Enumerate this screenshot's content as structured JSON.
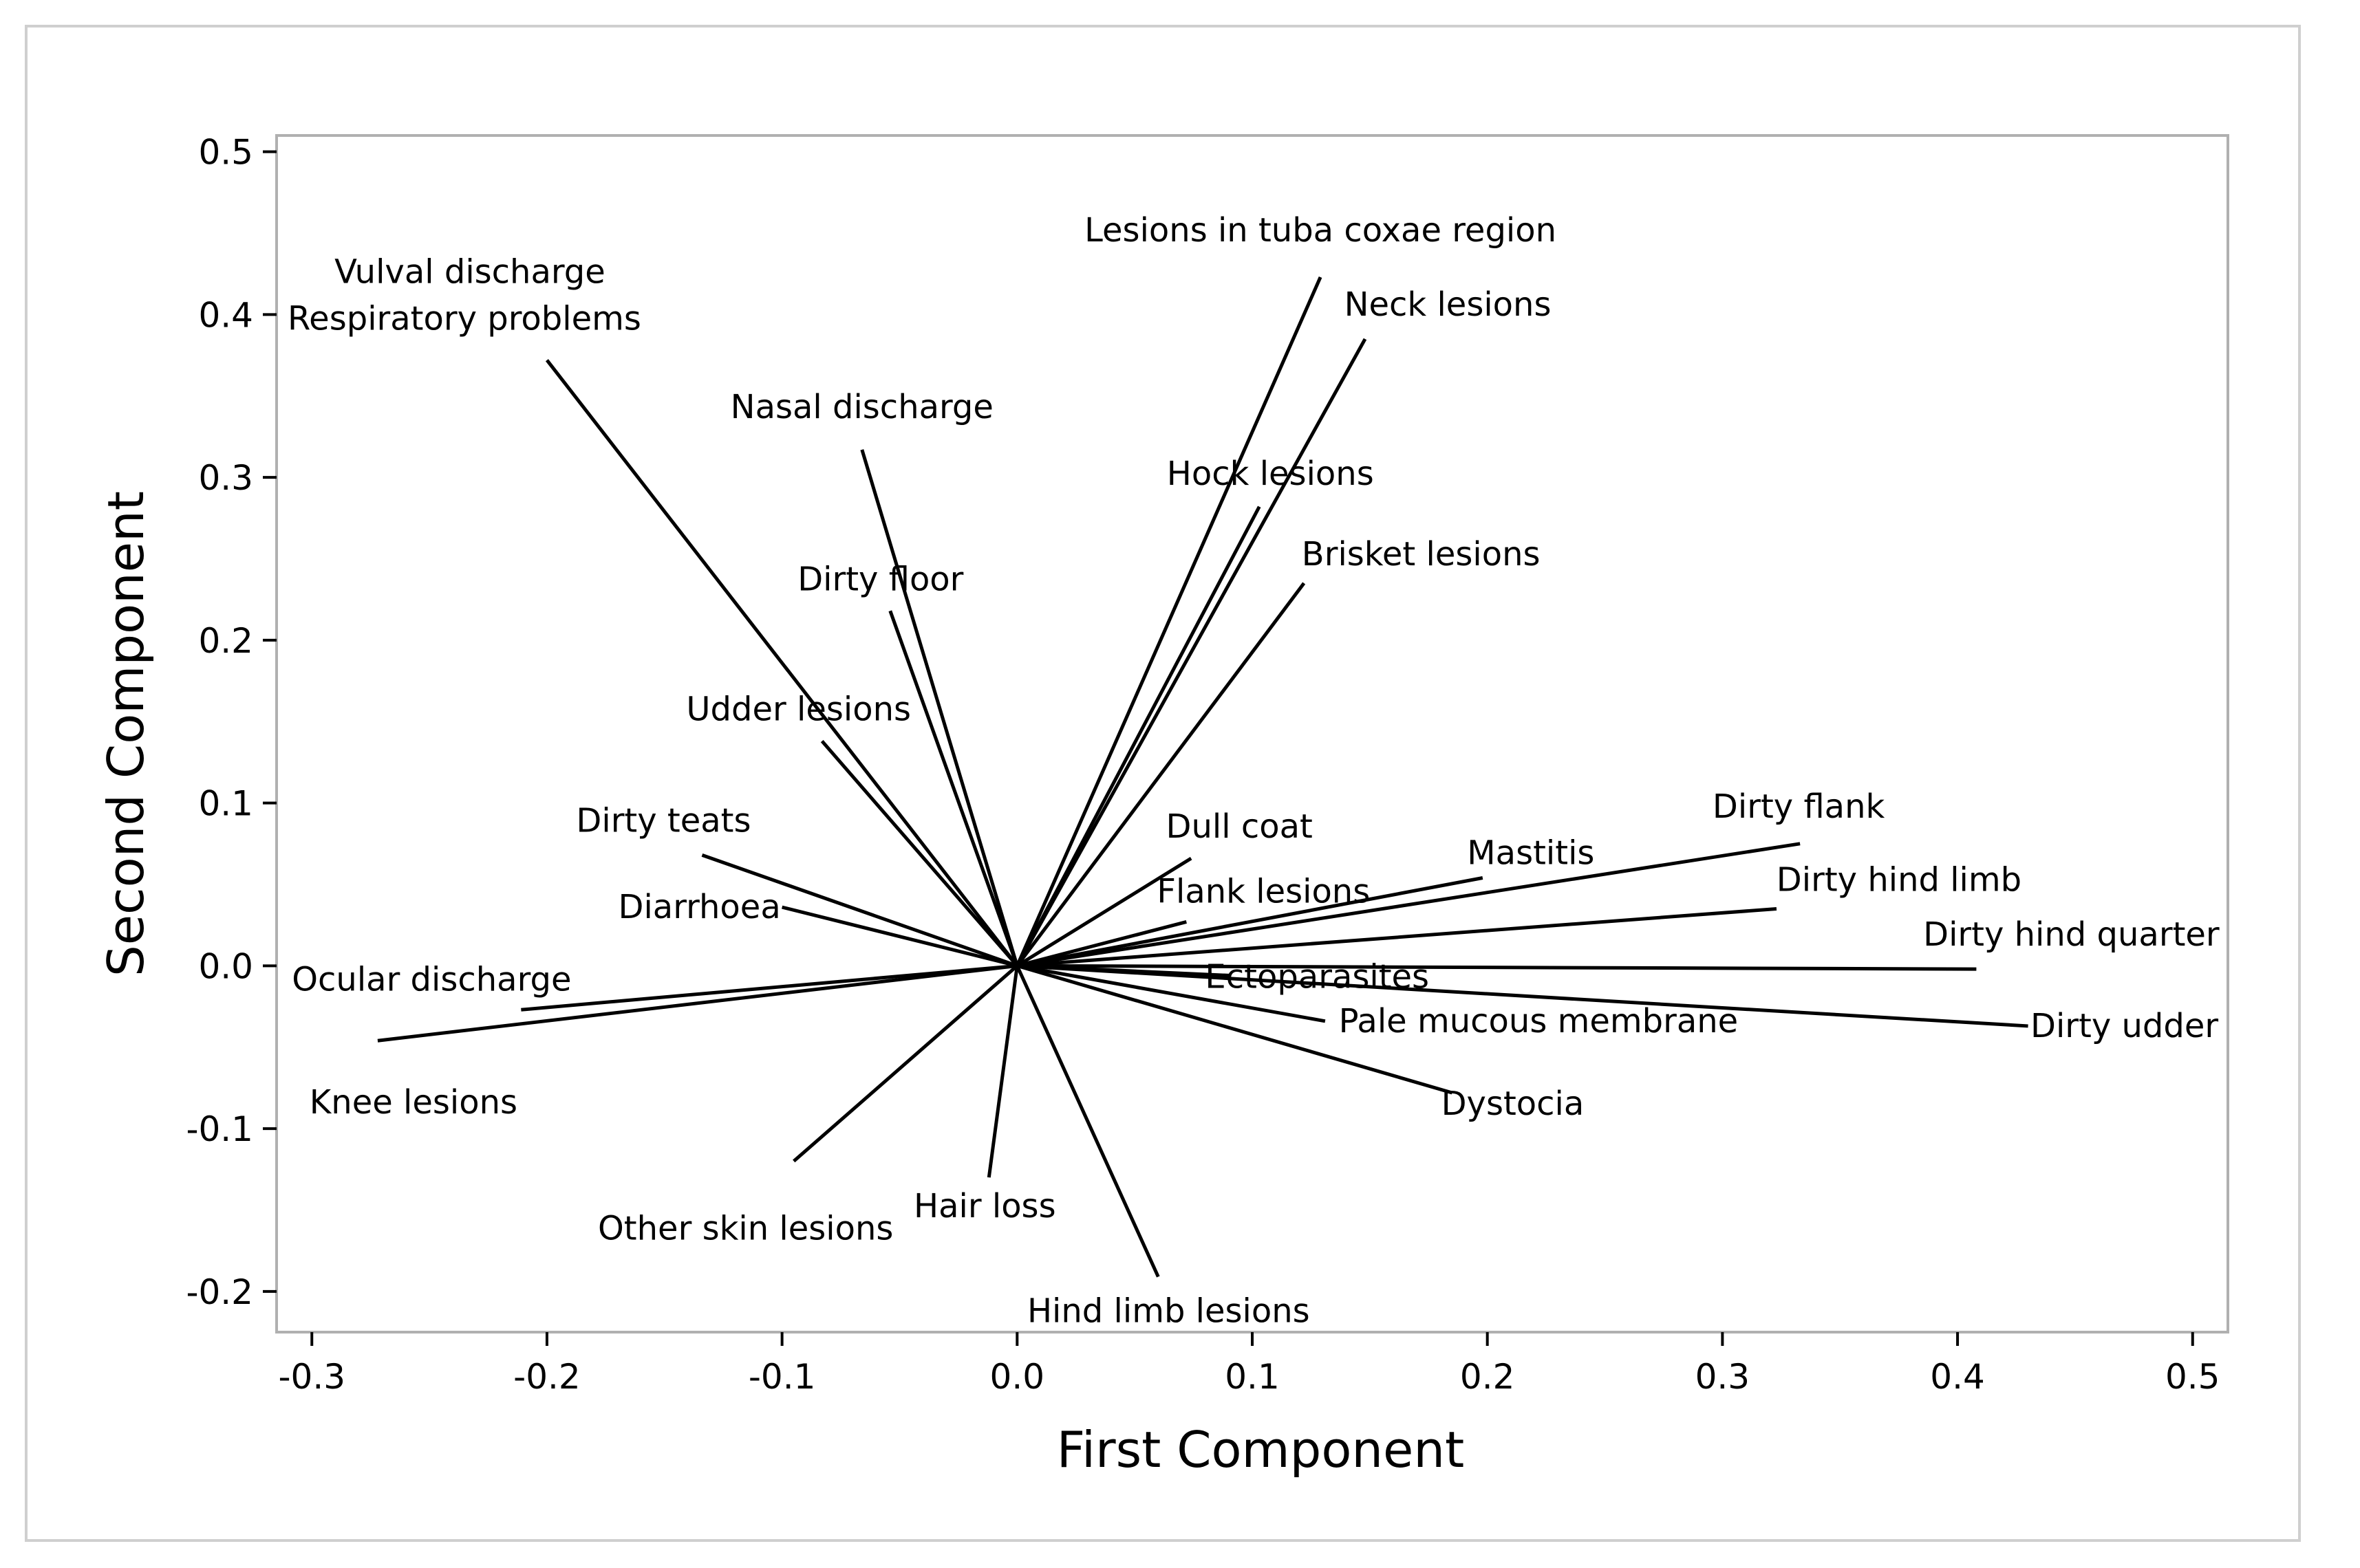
{
  "chart_data": {
    "type": "loading-plot",
    "title": "",
    "xlabel": "First Component",
    "ylabel": "Second Component",
    "xlim": [
      -0.315,
      0.515
    ],
    "ylim": [
      -0.225,
      0.51
    ],
    "x_ticks": [
      "-0.3",
      "-0.2",
      "-0.1",
      "0.0",
      "0.1",
      "0.2",
      "0.3",
      "0.4",
      "0.5"
    ],
    "x_tick_values": [
      -0.3,
      -0.2,
      -0.1,
      0.0,
      0.1,
      0.2,
      0.3,
      0.4,
      0.5
    ],
    "y_ticks": [
      "-0.2",
      "-0.1",
      "0.0",
      "0.1",
      "0.2",
      "0.3",
      "0.4",
      "0.5"
    ],
    "y_tick_values": [
      -0.2,
      -0.1,
      0.0,
      0.1,
      0.2,
      0.3,
      0.4,
      0.5
    ],
    "grid": false,
    "legend": "none",
    "vectors": [
      {
        "label": "Lesions in tuba coxae region",
        "x": 0.129,
        "y": 0.423
      },
      {
        "label": "Neck lesions",
        "x": 0.148,
        "y": 0.385
      },
      {
        "label": "Vulval discharge",
        "x": -0.2,
        "y": 0.372
      },
      {
        "label": "Respiratory problems",
        "x": -0.2,
        "y": 0.372
      },
      {
        "label": "Nasal discharge",
        "x": -0.066,
        "y": 0.317
      },
      {
        "label": "Hock lesions",
        "x": 0.103,
        "y": 0.282
      },
      {
        "label": "Brisket lesions",
        "x": 0.122,
        "y": 0.235
      },
      {
        "label": "Dirty floor",
        "x": -0.054,
        "y": 0.218
      },
      {
        "label": "Udder lesions",
        "x": -0.083,
        "y": 0.138
      },
      {
        "label": "Dirty teats",
        "x": -0.134,
        "y": 0.068
      },
      {
        "label": "Diarrhoea",
        "x": -0.1,
        "y": 0.036
      },
      {
        "label": "Dull coat",
        "x": 0.074,
        "y": 0.066
      },
      {
        "label": "Flank lesions",
        "x": 0.072,
        "y": 0.027
      },
      {
        "label": "Mastitis",
        "x": 0.198,
        "y": 0.054
      },
      {
        "label": "Dirty flank",
        "x": 0.333,
        "y": 0.075
      },
      {
        "label": "Dirty hind limb",
        "x": 0.323,
        "y": 0.035
      },
      {
        "label": "Dirty hind quarter",
        "x": 0.408,
        "y": -0.002
      },
      {
        "label": "Ectoparasites",
        "x": 0.091,
        "y": -0.006
      },
      {
        "label": "Pale mucous membrane",
        "x": 0.131,
        "y": -0.034
      },
      {
        "label": "Dirty udder",
        "x": 0.43,
        "y": -0.037
      },
      {
        "label": "Dystocia",
        "x": 0.185,
        "y": -0.078
      },
      {
        "label": "Ocular discharge",
        "x": -0.211,
        "y": -0.027
      },
      {
        "label": "Knee lesions",
        "x": -0.272,
        "y": -0.046
      },
      {
        "label": "Other skin lesions",
        "x": -0.095,
        "y": -0.12
      },
      {
        "label": "Hair loss",
        "x": -0.012,
        "y": -0.13
      },
      {
        "label": "Hind limb lesions",
        "x": 0.06,
        "y": -0.191
      }
    ]
  }
}
